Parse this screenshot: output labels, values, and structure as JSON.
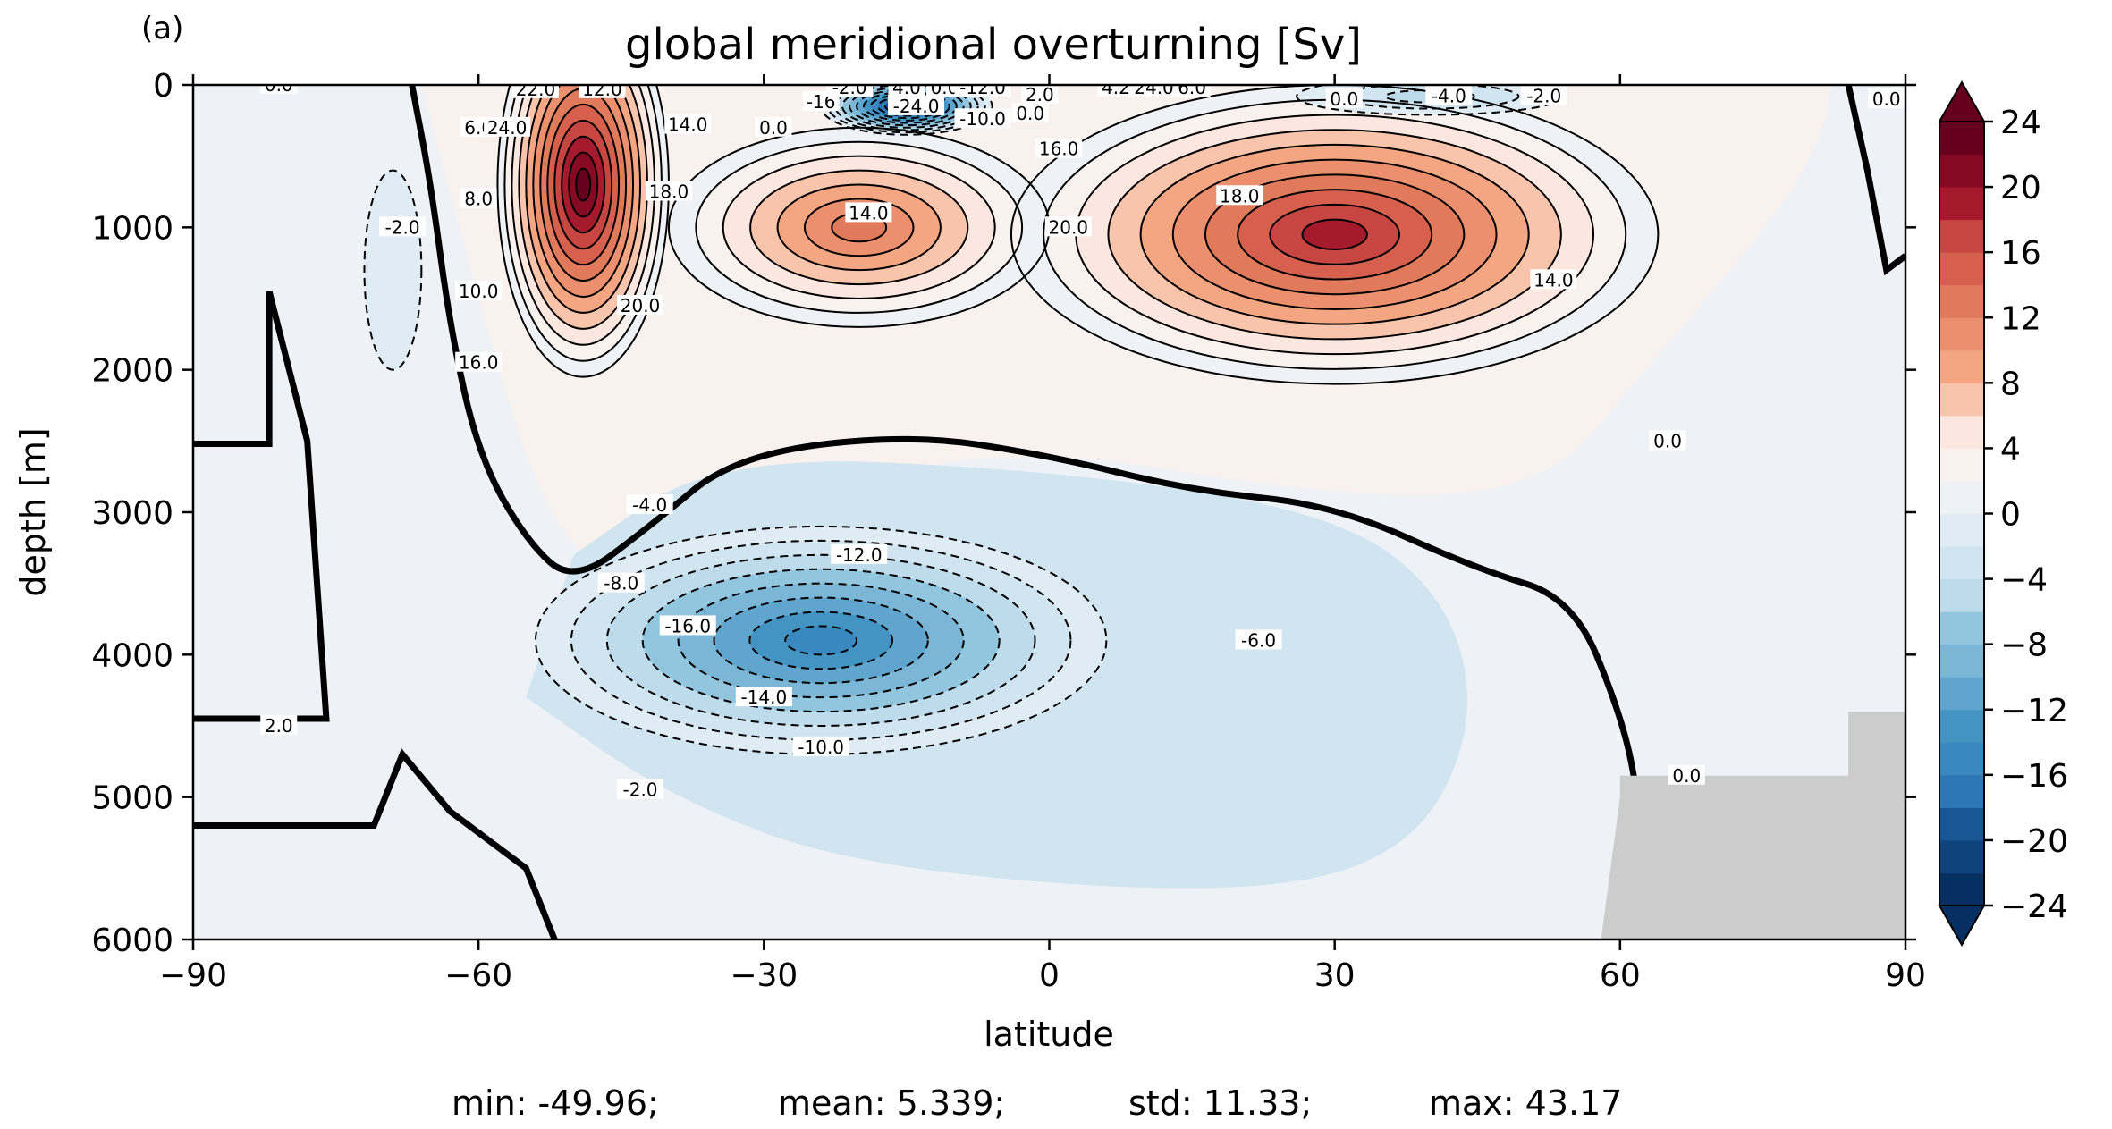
{
  "figure": {
    "panel_label": "(a)",
    "stats": {
      "min": "min: -49.96;",
      "mean": "mean: 5.339;",
      "std": "std: 11.33;",
      "max": "max: 43.17"
    }
  },
  "chart_data": {
    "type": "heatmap",
    "subtype": "filled-contour",
    "title": "global meridional overturning [Sv]",
    "xlabel": "latitude",
    "ylabel": "depth [m]",
    "xlim": [
      -90,
      90
    ],
    "ylim": [
      6000,
      0
    ],
    "y_inverted": true,
    "x_ticks": [
      -90,
      -60,
      -30,
      0,
      30,
      60,
      90
    ],
    "x_tick_labels": [
      "−90",
      "−60",
      "−30",
      "0",
      "30",
      "60",
      "90"
    ],
    "y_ticks": [
      0,
      1000,
      2000,
      3000,
      4000,
      5000,
      6000
    ],
    "y_tick_labels": [
      "0",
      "1000",
      "2000",
      "3000",
      "4000",
      "5000",
      "6000"
    ],
    "colorbar": {
      "ticks": [
        24,
        20,
        16,
        12,
        8,
        4,
        0,
        -4,
        -8,
        -12,
        -16,
        -20,
        -24
      ],
      "tick_labels": [
        "24",
        "20",
        "16",
        "12",
        "8",
        "4",
        "0",
        "−4",
        "−8",
        "−12",
        "−16",
        "−20",
        "−24"
      ],
      "levels_step": 2,
      "range": [
        -24,
        24
      ],
      "extend": "both",
      "colormap": "RdBu_r",
      "colors": [
        "#053061",
        "#0f437b",
        "#195696",
        "#2166ac",
        "#2d77b7",
        "#3a88c0",
        "#4393c3",
        "#5fa5cd",
        "#7bb6d6",
        "#92c5de",
        "#a8d1e5",
        "#bddbeb",
        "#d1e5f0",
        "#e0ecf4",
        "#eef2f6",
        "#f8f1ee",
        "#fbe7df",
        "#fddbc7",
        "#f8c4ab",
        "#f4a582",
        "#eb8f6e",
        "#e07a5b",
        "#d6604d",
        "#c74641",
        "#b82d36",
        "#a51a2c",
        "#870a25",
        "#67001f"
      ]
    },
    "land_color": "#cccccc",
    "features": [
      {
        "name": "antarctic cell",
        "sign": "positive",
        "lat": -50,
        "depth": 600,
        "peak": 24
      },
      {
        "name": "north atlantic overturning cell",
        "sign": "positive",
        "lat": 40,
        "depth": 1000,
        "peak": 20
      },
      {
        "name": "subtropical cell",
        "sign": "positive",
        "lat": -20,
        "depth": 1000,
        "peak": 14
      },
      {
        "name": "bottom water cell",
        "sign": "negative",
        "lat": -28,
        "depth": 3800,
        "peak": -16
      },
      {
        "name": "surface equatorial cell",
        "sign": "negative",
        "lat": -15,
        "depth": 150,
        "peak": -24
      }
    ],
    "annotations": [
      {
        "text": "0.0",
        "lat": -81,
        "depth": 0
      },
      {
        "text": "22.0",
        "lat": -54,
        "depth": 30
      },
      {
        "text": "12.0",
        "lat": -47,
        "depth": 30
      },
      {
        "text": "6.0",
        "lat": -60,
        "depth": 300
      },
      {
        "text": "24.0",
        "lat": -57,
        "depth": 300
      },
      {
        "text": "8.0",
        "lat": -60,
        "depth": 800
      },
      {
        "text": "10.0",
        "lat": -60,
        "depth": 1450
      },
      {
        "text": "16.0",
        "lat": -60,
        "depth": 1950
      },
      {
        "text": "-2.0",
        "lat": -68,
        "depth": 1000
      },
      {
        "text": "2.0",
        "lat": -81,
        "depth": 4500
      },
      {
        "text": "14.0",
        "lat": -38,
        "depth": 280
      },
      {
        "text": "18.0",
        "lat": -40,
        "depth": 750
      },
      {
        "text": "20.0",
        "lat": -43,
        "depth": 1550
      },
      {
        "text": "14.0",
        "lat": -19,
        "depth": 900
      },
      {
        "text": "-16",
        "lat": -24,
        "depth": 120
      },
      {
        "text": "-2.0",
        "lat": -21,
        "depth": 20
      },
      {
        "text": "4.0",
        "lat": -15,
        "depth": 20
      },
      {
        "text": "0.0",
        "lat": -11,
        "depth": 20
      },
      {
        "text": "-24.0",
        "lat": -14,
        "depth": 150
      },
      {
        "text": "-10.0",
        "lat": -7,
        "depth": 240
      },
      {
        "text": "-12.0",
        "lat": -7,
        "depth": 20
      },
      {
        "text": "0.0",
        "lat": -2,
        "depth": 200
      },
      {
        "text": "0.0",
        "lat": -29,
        "depth": 300
      },
      {
        "text": "2.0",
        "lat": -1,
        "depth": 70
      },
      {
        "text": "16.0",
        "lat": 1,
        "depth": 450
      },
      {
        "text": "20.0",
        "lat": 2,
        "depth": 1000
      },
      {
        "text": "4.2",
        "lat": 7,
        "depth": 20
      },
      {
        "text": "24.0",
        "lat": 11,
        "depth": 20
      },
      {
        "text": "6.0",
        "lat": 15,
        "depth": 20
      },
      {
        "text": "18.0",
        "lat": 20,
        "depth": 780
      },
      {
        "text": "14.0",
        "lat": 53,
        "depth": 1370
      },
      {
        "text": "0.0",
        "lat": 31,
        "depth": 100
      },
      {
        "text": "-4.0",
        "lat": 42,
        "depth": 80
      },
      {
        "text": "-2.0",
        "lat": 52,
        "depth": 80
      },
      {
        "text": "0.0",
        "lat": 88,
        "depth": 100
      },
      {
        "text": "0.0",
        "lat": 65,
        "depth": 2500
      },
      {
        "text": "0.0",
        "lat": 67,
        "depth": 4850
      },
      {
        "text": "-4.0",
        "lat": -42,
        "depth": 2950
      },
      {
        "text": "-8.0",
        "lat": -45,
        "depth": 3500
      },
      {
        "text": "-12.0",
        "lat": -20,
        "depth": 3300
      },
      {
        "text": "-16.0",
        "lat": -38,
        "depth": 3800
      },
      {
        "text": "-14.0",
        "lat": -30,
        "depth": 4300
      },
      {
        "text": "-10.0",
        "lat": -24,
        "depth": 4650
      },
      {
        "text": "-6.0",
        "lat": 22,
        "depth": 3900
      },
      {
        "text": "-2.0",
        "lat": -43,
        "depth": 4950
      }
    ]
  }
}
